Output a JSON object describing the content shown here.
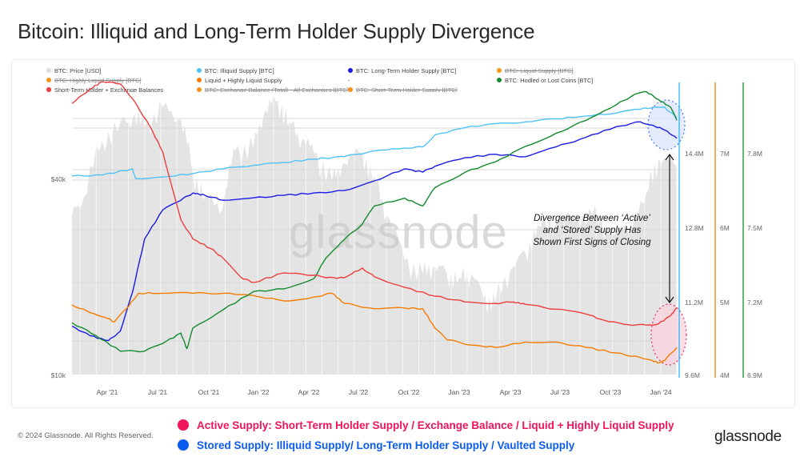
{
  "page": {
    "title": "Bitcoin: Illiquid and Long-Term Holder Supply Divergence",
    "copyright": "© 2024 Glassnode. All Rights Reserved.",
    "brand": "glassnode",
    "watermark": "glassnode"
  },
  "legend": [
    {
      "label": "BTC: Price [USD]",
      "color": "#dcdcdc",
      "struck": false
    },
    {
      "label": "BTC: Illiquid Supply [BTC]",
      "color": "#4fc3f7",
      "struck": false
    },
    {
      "label": "BTC: Long-Term Holder Supply [BTC]",
      "color": "#1a1ae6",
      "struck": false
    },
    {
      "label": "BTC: Liquid Supply [BTC]",
      "color": "#f7931a",
      "struck": true
    },
    {
      "label": "BTC: Highly Liquid Supply [BTC]",
      "color": "#f7931a",
      "struck": true
    },
    {
      "label": "Liquid + Highly Liquid Supply",
      "color": "#f57c00",
      "struck": false
    },
    {
      "label": "-",
      "color": "",
      "struck": false
    },
    {
      "label": "BTC: Hodled or Lost Coins [BTC]",
      "color": "#128a2f",
      "struck": false
    },
    {
      "label": "Short-Term Holder + Exchange Balances",
      "color": "#f03c3c",
      "struck": false
    },
    {
      "label": "BTC: Exchange Balance (Total) - All Exchanges [BTC]",
      "color": "#f7931a",
      "struck": true
    },
    {
      "label": "BTC: Short-Term Holder Supply [BTC]",
      "color": "#f7931a",
      "struck": true
    }
  ],
  "footer_legend": [
    {
      "label": "Active Supply: Short-Term Holder Supply / Exchange Balance / Liquid + Highly Liquid Supply",
      "color": "#f0145a"
    },
    {
      "label": "Stored Supply: Illiquid Supply/ Long-Term Holder Supply / Vaulted Supply",
      "color": "#0a5cf0"
    }
  ],
  "chart_data": {
    "type": "line",
    "title": "Bitcoin: Illiquid and Long-Term Holder Supply Divergence",
    "x_start": "2021-01",
    "x_end": "2024-02",
    "x_ticks": [
      "Apr '21",
      "Jul '21",
      "Oct '21",
      "Jan '22",
      "Apr '22",
      "Jul '22",
      "Oct '22",
      "Jan '23",
      "Apr '23",
      "Jul '23",
      "Oct '23",
      "Jan '24"
    ],
    "axes": {
      "price": {
        "ticks": [
          "$10k",
          "$40k"
        ],
        "scale": "log",
        "range": [
          10000,
          70000
        ]
      },
      "illiquid": {
        "ticks": [
          "9.6M",
          "11.2M",
          "12.8M",
          "14.4M"
        ],
        "range": [
          9.6,
          15.6
        ],
        "unit": "M BTC"
      },
      "liquid": {
        "ticks": [
          "4M",
          "5M",
          "6M",
          "7M"
        ],
        "range": [
          4,
          7.75
        ],
        "unit": "M BTC"
      },
      "hodled": {
        "ticks": [
          "6.9M",
          "7.2M",
          "7.5M",
          "7.8M"
        ],
        "range": [
          6.9,
          8.02
        ],
        "unit": "M BTC"
      }
    },
    "grid": true,
    "legend_position": "top",
    "annotation": "Divergence Between ‘Active’ and ‘Stored’ Supply Has Shown First Signs of Closing",
    "series": [
      {
        "name": "BTC: Price [USD]",
        "type": "area",
        "color": "#e6e6e6",
        "x": [
          0,
          0.02,
          0.05,
          0.08,
          0.1,
          0.12,
          0.15,
          0.18,
          0.2,
          0.22,
          0.25,
          0.27,
          0.3,
          0.32,
          0.34,
          0.36,
          0.38,
          0.4,
          0.43,
          0.45,
          0.48,
          0.5,
          0.52,
          0.55,
          0.58,
          0.6,
          0.62,
          0.64,
          0.66,
          0.68,
          0.7,
          0.73,
          0.75,
          0.77,
          0.8,
          0.83,
          0.86,
          0.89,
          0.92,
          0.95,
          0.97,
          1.0
        ],
        "values": [
          30000,
          34000,
          50000,
          57000,
          58000,
          55000,
          63000,
          58000,
          40000,
          34000,
          32000,
          47000,
          48000,
          62000,
          66000,
          57000,
          50000,
          46000,
          38000,
          43000,
          46000,
          39000,
          30000,
          22000,
          20000,
          21000,
          20000,
          19500,
          20000,
          17000,
          16500,
          21000,
          23000,
          28000,
          28500,
          29500,
          30000,
          26000,
          27000,
          35000,
          44000,
          42000
        ]
      },
      {
        "name": "BTC: Illiquid Supply [BTC]",
        "axis": "illiquid",
        "color": "#4fc3f7",
        "x": [
          0,
          0.05,
          0.1,
          0.105,
          0.15,
          0.2,
          0.25,
          0.3,
          0.35,
          0.4,
          0.43,
          0.45,
          0.5,
          0.55,
          0.58,
          0.6,
          0.65,
          0.7,
          0.75,
          0.8,
          0.85,
          0.9,
          0.94,
          0.96,
          0.98,
          1.0
        ],
        "values": [
          13.7,
          13.72,
          13.85,
          13.65,
          13.68,
          13.75,
          13.85,
          13.92,
          13.98,
          14.05,
          14.08,
          14.1,
          14.22,
          14.28,
          14.3,
          14.55,
          14.7,
          14.78,
          14.82,
          14.88,
          14.94,
          15.0,
          15.08,
          15.12,
          15.12,
          14.9
        ]
      },
      {
        "name": "BTC: Long-Term Holder Supply [BTC]",
        "axis": "illiquid",
        "color": "#1a1ae6",
        "x": [
          0,
          0.03,
          0.06,
          0.08,
          0.1,
          0.12,
          0.15,
          0.18,
          0.2,
          0.22,
          0.25,
          0.3,
          0.35,
          0.4,
          0.45,
          0.5,
          0.55,
          0.58,
          0.6,
          0.65,
          0.7,
          0.75,
          0.8,
          0.85,
          0.9,
          0.94,
          0.96,
          0.98,
          1.0
        ],
        "values": [
          10.6,
          10.4,
          10.3,
          10.5,
          11.3,
          12.4,
          13.0,
          13.2,
          13.35,
          13.3,
          13.2,
          13.25,
          13.3,
          13.35,
          13.4,
          13.6,
          13.85,
          13.78,
          13.9,
          14.08,
          14.15,
          14.1,
          14.3,
          14.5,
          14.72,
          14.82,
          14.75,
          14.65,
          14.48
        ]
      },
      {
        "name": "Liquid + Highly Liquid Supply",
        "axis": "liquid",
        "color": "#f57c00",
        "x": [
          0,
          0.03,
          0.06,
          0.07,
          0.09,
          0.11,
          0.15,
          0.2,
          0.25,
          0.3,
          0.35,
          0.4,
          0.43,
          0.45,
          0.5,
          0.55,
          0.58,
          0.6,
          0.62,
          0.66,
          0.7,
          0.75,
          0.8,
          0.85,
          0.9,
          0.94,
          0.96,
          0.97,
          0.98,
          1.0
        ],
        "values": [
          4.9,
          4.8,
          4.72,
          4.68,
          4.85,
          5.05,
          5.05,
          5.05,
          5.05,
          5.02,
          4.95,
          5.0,
          5.05,
          4.92,
          4.85,
          4.86,
          4.85,
          4.6,
          4.45,
          4.38,
          4.35,
          4.42,
          4.42,
          4.35,
          4.28,
          4.22,
          4.18,
          4.15,
          4.18,
          4.35
        ]
      },
      {
        "name": "BTC: Hodled or Lost Coins [BTC]",
        "axis": "hodled",
        "color": "#128a2f",
        "x": [
          0,
          0.04,
          0.08,
          0.12,
          0.15,
          0.18,
          0.19,
          0.2,
          0.25,
          0.3,
          0.35,
          0.4,
          0.42,
          0.45,
          0.48,
          0.5,
          0.55,
          0.58,
          0.6,
          0.65,
          0.7,
          0.75,
          0.8,
          0.85,
          0.9,
          0.93,
          0.95,
          0.97,
          0.99,
          1.0
        ],
        "values": [
          7.1,
          7.05,
          6.99,
          6.99,
          7.02,
          7.06,
          7.0,
          7.08,
          7.15,
          7.22,
          7.23,
          7.27,
          7.35,
          7.42,
          7.48,
          7.55,
          7.58,
          7.55,
          7.62,
          7.68,
          7.72,
          7.78,
          7.83,
          7.88,
          7.94,
          7.98,
          7.99,
          7.96,
          7.93,
          7.88
        ]
      },
      {
        "name": "Short-Term Holder + Exchange Balances",
        "axis": "illiquid",
        "color": "#f03c3c",
        "x": [
          0,
          0.03,
          0.05,
          0.08,
          0.1,
          0.13,
          0.15,
          0.18,
          0.2,
          0.23,
          0.25,
          0.28,
          0.3,
          0.35,
          0.4,
          0.42,
          0.45,
          0.48,
          0.5,
          0.55,
          0.6,
          0.65,
          0.7,
          0.73,
          0.75,
          0.8,
          0.85,
          0.88,
          0.92,
          0.95,
          0.97,
          0.99,
          1.0
        ],
        "values": [
          15.2,
          15.5,
          15.65,
          15.6,
          15.3,
          14.7,
          14.2,
          12.8,
          12.4,
          12.2,
          12.0,
          11.6,
          11.5,
          11.7,
          11.65,
          11.6,
          11.6,
          11.8,
          11.62,
          11.4,
          11.22,
          11.1,
          11.07,
          11.1,
          11.05,
          10.95,
          10.85,
          10.72,
          10.63,
          10.62,
          10.65,
          10.82,
          10.98
        ]
      }
    ]
  }
}
